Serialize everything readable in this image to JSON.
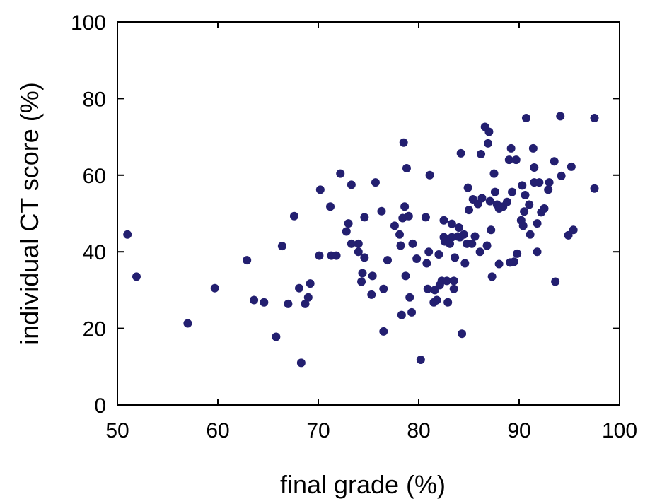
{
  "chart_data": {
    "type": "scatter",
    "title": "",
    "xlabel": "final grade (%)",
    "ylabel": "individual CT score (%)",
    "xlim": [
      50,
      100
    ],
    "ylim": [
      0,
      100
    ],
    "xticks": [
      50,
      60,
      70,
      80,
      90,
      100
    ],
    "yticks": [
      0,
      20,
      40,
      60,
      80,
      100
    ],
    "grid": false,
    "marker_color": "#231f70",
    "points": [
      [
        51.0,
        44.5
      ],
      [
        51.9,
        33.5
      ],
      [
        57.0,
        21.3
      ],
      [
        59.7,
        30.5
      ],
      [
        62.9,
        37.8
      ],
      [
        63.6,
        27.4
      ],
      [
        64.6,
        26.8
      ],
      [
        65.8,
        17.8
      ],
      [
        66.4,
        41.5
      ],
      [
        67.0,
        26.4
      ],
      [
        67.6,
        49.3
      ],
      [
        68.1,
        30.5
      ],
      [
        68.3,
        11.0
      ],
      [
        68.7,
        26.4
      ],
      [
        69.0,
        28.1
      ],
      [
        69.2,
        31.7
      ],
      [
        70.1,
        39.0
      ],
      [
        70.2,
        56.2
      ],
      [
        71.2,
        51.8
      ],
      [
        71.3,
        39.0
      ],
      [
        71.8,
        39.0
      ],
      [
        72.2,
        60.4
      ],
      [
        72.8,
        45.3
      ],
      [
        73.0,
        47.4
      ],
      [
        73.3,
        57.5
      ],
      [
        73.3,
        42.1
      ],
      [
        74.0,
        42.1
      ],
      [
        74.0,
        40.0
      ],
      [
        74.3,
        32.2
      ],
      [
        74.4,
        34.4
      ],
      [
        74.6,
        49.0
      ],
      [
        74.6,
        38.5
      ],
      [
        75.3,
        28.8
      ],
      [
        75.4,
        33.7
      ],
      [
        75.7,
        58.1
      ],
      [
        76.3,
        50.6
      ],
      [
        76.5,
        30.3
      ],
      [
        76.5,
        19.2
      ],
      [
        76.9,
        37.8
      ],
      [
        77.6,
        46.8
      ],
      [
        78.1,
        44.5
      ],
      [
        78.2,
        41.6
      ],
      [
        78.3,
        23.5
      ],
      [
        78.4,
        48.8
      ],
      [
        78.5,
        68.5
      ],
      [
        78.6,
        51.8
      ],
      [
        78.7,
        33.7
      ],
      [
        78.8,
        61.8
      ],
      [
        79.0,
        49.3
      ],
      [
        79.1,
        28.1
      ],
      [
        79.3,
        24.2
      ],
      [
        79.4,
        42.1
      ],
      [
        79.8,
        38.2
      ],
      [
        80.2,
        11.8
      ],
      [
        80.7,
        49.0
      ],
      [
        80.8,
        37.0
      ],
      [
        80.9,
        30.3
      ],
      [
        81.0,
        40.0
      ],
      [
        81.1,
        60.0
      ],
      [
        81.5,
        26.8
      ],
      [
        81.6,
        30.0
      ],
      [
        81.8,
        27.4
      ],
      [
        82.0,
        39.3
      ],
      [
        82.1,
        31.3
      ],
      [
        82.3,
        32.4
      ],
      [
        82.5,
        48.2
      ],
      [
        82.5,
        43.8
      ],
      [
        82.6,
        42.7
      ],
      [
        82.8,
        32.4
      ],
      [
        82.9,
        26.8
      ],
      [
        83.1,
        42.1
      ],
      [
        83.3,
        47.3
      ],
      [
        83.3,
        43.8
      ],
      [
        83.5,
        30.3
      ],
      [
        83.5,
        32.4
      ],
      [
        83.6,
        38.5
      ],
      [
        83.9,
        44.0
      ],
      [
        84.0,
        46.3
      ],
      [
        84.1,
        43.8
      ],
      [
        84.2,
        65.7
      ],
      [
        84.3,
        18.6
      ],
      [
        84.5,
        44.5
      ],
      [
        84.6,
        37.0
      ],
      [
        84.8,
        42.1
      ],
      [
        84.9,
        56.7
      ],
      [
        85.0,
        50.9
      ],
      [
        85.3,
        42.1
      ],
      [
        85.4,
        53.7
      ],
      [
        85.6,
        44.0
      ],
      [
        85.9,
        52.5
      ],
      [
        86.1,
        40.0
      ],
      [
        86.2,
        65.5
      ],
      [
        86.3,
        54.0
      ],
      [
        86.6,
        72.6
      ],
      [
        86.8,
        41.6
      ],
      [
        86.9,
        68.3
      ],
      [
        87.0,
        71.3
      ],
      [
        87.1,
        53.2
      ],
      [
        87.2,
        45.7
      ],
      [
        87.3,
        33.5
      ],
      [
        87.5,
        60.4
      ],
      [
        87.6,
        55.6
      ],
      [
        87.8,
        52.3
      ],
      [
        88.0,
        51.3
      ],
      [
        88.0,
        36.8
      ],
      [
        88.4,
        51.8
      ],
      [
        88.8,
        53.0
      ],
      [
        89.0,
        64.0
      ],
      [
        89.1,
        37.2
      ],
      [
        89.2,
        67.0
      ],
      [
        89.3,
        55.6
      ],
      [
        89.5,
        37.4
      ],
      [
        89.7,
        64.0
      ],
      [
        89.8,
        39.5
      ],
      [
        90.2,
        48.2
      ],
      [
        90.3,
        57.3
      ],
      [
        90.4,
        46.8
      ],
      [
        90.5,
        50.5
      ],
      [
        90.6,
        54.8
      ],
      [
        90.7,
        74.9
      ],
      [
        91.0,
        52.3
      ],
      [
        91.1,
        44.5
      ],
      [
        91.4,
        67.0
      ],
      [
        91.5,
        58.1
      ],
      [
        91.5,
        62.0
      ],
      [
        91.8,
        47.4
      ],
      [
        91.8,
        40.0
      ],
      [
        92.0,
        58.1
      ],
      [
        92.2,
        50.3
      ],
      [
        92.5,
        51.3
      ],
      [
        92.9,
        56.2
      ],
      [
        93.0,
        58.1
      ],
      [
        93.5,
        63.6
      ],
      [
        93.6,
        32.2
      ],
      [
        94.1,
        75.4
      ],
      [
        94.2,
        59.8
      ],
      [
        94.9,
        44.3
      ],
      [
        95.2,
        62.2
      ],
      [
        95.4,
        45.7
      ],
      [
        97.5,
        56.5
      ],
      [
        97.5,
        74.9
      ]
    ]
  }
}
